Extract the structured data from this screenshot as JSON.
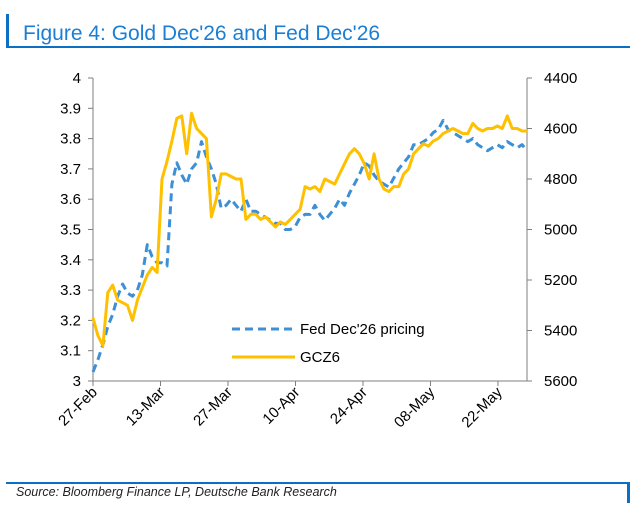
{
  "title": "Figure 4: Gold Dec'26 and Fed Dec'26",
  "source": "Source: Bloomberg Finance LP, Deutsche Bank Research",
  "colors": {
    "fed": "#3d8fd6",
    "gold": "#ffc000",
    "accent": "#1a7fd4",
    "axis": "#7f7f7f"
  },
  "chart_data": {
    "type": "line",
    "x_tick_labels": [
      "27-Feb",
      "13-Mar",
      "27-Mar",
      "10-Apr",
      "24-Apr",
      "08-May",
      "22-May"
    ],
    "y_left": {
      "ticks": [
        "3",
        "3.1",
        "3.2",
        "3.3",
        "3.4",
        "3.5",
        "3.6",
        "3.7",
        "3.8",
        "3.9",
        "4"
      ],
      "min": 3,
      "max": 4
    },
    "y_right": {
      "ticks": [
        "4400",
        "4600",
        "4800",
        "5000",
        "5200",
        "5400",
        "5600"
      ],
      "min": 4400,
      "max": 5600,
      "inverted": true
    },
    "legend_position": "bottom-center",
    "series": [
      {
        "name": "Fed Dec'26 pricing",
        "axis": "left",
        "style": "dashed",
        "x": [
          0,
          1,
          2,
          3,
          4,
          5,
          6,
          7,
          8,
          9,
          10,
          11,
          12,
          13,
          14,
          15,
          16,
          17,
          18,
          19,
          20,
          21,
          22,
          23,
          24,
          25,
          26,
          27,
          28,
          29,
          30,
          31,
          32,
          33,
          34,
          35,
          36,
          37,
          38,
          39,
          40,
          41,
          42,
          43,
          44,
          45,
          46,
          47,
          48,
          49,
          50,
          51,
          52,
          53,
          54,
          55,
          56,
          57,
          58,
          59,
          60,
          61,
          62,
          63,
          64,
          65,
          66,
          67,
          68,
          69,
          70,
          71,
          72,
          73,
          74,
          75,
          76,
          77,
          78,
          79,
          80,
          81,
          82,
          83,
          84,
          85,
          86,
          87,
          88
        ],
        "values": [
          3.03,
          3.07,
          3.12,
          3.18,
          3.22,
          3.28,
          3.32,
          3.29,
          3.28,
          3.3,
          3.35,
          3.45,
          3.41,
          3.39,
          3.39,
          3.38,
          3.65,
          3.72,
          3.68,
          3.65,
          3.7,
          3.72,
          3.79,
          3.74,
          3.7,
          3.65,
          3.57,
          3.58,
          3.6,
          3.58,
          3.56,
          3.6,
          3.56,
          3.56,
          3.55,
          3.54,
          3.53,
          3.52,
          3.52,
          3.5,
          3.5,
          3.51,
          3.54,
          3.55,
          3.55,
          3.58,
          3.55,
          3.53,
          3.55,
          3.57,
          3.6,
          3.58,
          3.62,
          3.65,
          3.68,
          3.72,
          3.71,
          3.68,
          3.66,
          3.65,
          3.64,
          3.67,
          3.7,
          3.72,
          3.74,
          3.78,
          3.78,
          3.79,
          3.8,
          3.82,
          3.83,
          3.86,
          3.83,
          3.82,
          3.81,
          3.8,
          3.79,
          3.8,
          3.78,
          3.77,
          3.76,
          3.77,
          3.78,
          3.77,
          3.79,
          3.78,
          3.77,
          3.78,
          3.76
        ]
      },
      {
        "name": "GCZ6",
        "axis": "right",
        "style": "solid",
        "x": [
          0,
          1,
          2,
          3,
          4,
          5,
          6,
          7,
          8,
          9,
          10,
          11,
          12,
          13,
          14,
          15,
          16,
          17,
          18,
          19,
          20,
          21,
          22,
          23,
          24,
          25,
          26,
          27,
          28,
          29,
          30,
          31,
          32,
          33,
          34,
          35,
          36,
          37,
          38,
          39,
          40,
          41,
          42,
          43,
          44,
          45,
          46,
          47,
          48,
          49,
          50,
          51,
          52,
          53,
          54,
          55,
          56,
          57,
          58,
          59,
          60,
          61,
          62,
          63,
          64,
          65,
          66,
          67,
          68,
          69,
          70,
          71,
          72,
          73,
          74,
          75,
          76,
          77,
          78,
          79,
          80,
          81,
          82,
          83,
          84,
          85,
          86,
          87,
          88
        ],
        "values": [
          5350,
          5420,
          5460,
          5250,
          5220,
          5280,
          5290,
          5300,
          5360,
          5280,
          5230,
          5180,
          5150,
          5170,
          4800,
          4730,
          4650,
          4560,
          4550,
          4700,
          4540,
          4600,
          4620,
          4640,
          4950,
          4880,
          4780,
          4780,
          4790,
          4800,
          4800,
          4960,
          4940,
          4940,
          4960,
          4950,
          4970,
          4990,
          4970,
          4980,
          4960,
          4940,
          4920,
          4830,
          4840,
          4830,
          4850,
          4800,
          4810,
          4820,
          4780,
          4740,
          4700,
          4680,
          4700,
          4740,
          4800,
          4700,
          4800,
          4840,
          4850,
          4830,
          4830,
          4780,
          4760,
          4700,
          4680,
          4660,
          4670,
          4650,
          4640,
          4620,
          4610,
          4600,
          4610,
          4620,
          4620,
          4580,
          4600,
          4610,
          4600,
          4600,
          4590,
          4600,
          4550,
          4600,
          4600,
          4610,
          4610
        ]
      }
    ]
  }
}
